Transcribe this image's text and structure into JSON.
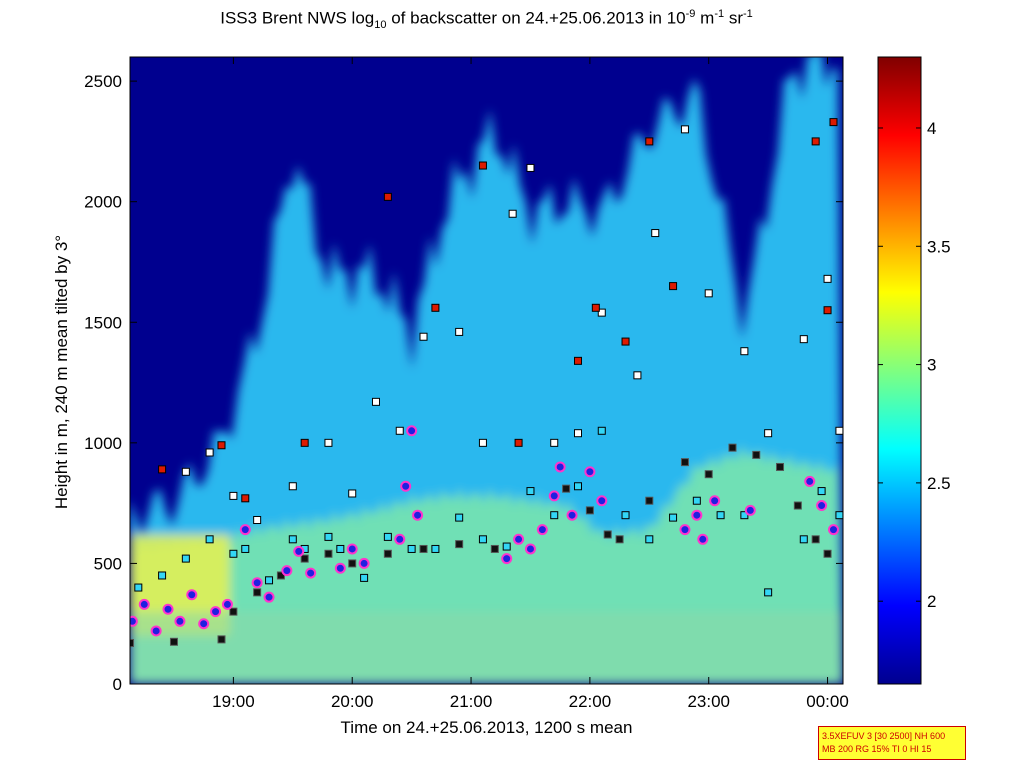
{
  "chart_data": {
    "type": "heatmap",
    "title_parts": {
      "a": "ISS3 Brent NWS log",
      "sub": "10",
      "b": " of backscatter on 24.+25.06.2013 in 10",
      "sup1": "-9",
      "c": " m",
      "sup2": "-1",
      "d": " sr",
      "sup3": "-1"
    },
    "xlabel": "Time on 24.+25.06.2013, 1200 s mean",
    "ylabel": "Height in m, 240 m mean tilted by 3°",
    "x_range_hours": [
      18.13,
      24.13
    ],
    "ylim": [
      0,
      2600
    ],
    "x_ticks": [
      {
        "value": 19,
        "label": "19:00"
      },
      {
        "value": 20,
        "label": "20:00"
      },
      {
        "value": 21,
        "label": "21:00"
      },
      {
        "value": 22,
        "label": "22:00"
      },
      {
        "value": 23,
        "label": "23:00"
      },
      {
        "value": 24,
        "label": "00:00"
      }
    ],
    "y_ticks": [
      {
        "value": 0,
        "label": "0"
      },
      {
        "value": 500,
        "label": "500"
      },
      {
        "value": 1000,
        "label": "1000"
      },
      {
        "value": 1500,
        "label": "1500"
      },
      {
        "value": 2000,
        "label": "2000"
      },
      {
        "value": 2500,
        "label": "2500"
      }
    ],
    "colorbar": {
      "range": [
        1.65,
        4.3
      ],
      "colormap": "jet",
      "ticks": [
        {
          "value": 2,
          "label": "2"
        },
        {
          "value": 2.5,
          "label": "2.5"
        },
        {
          "value": 3,
          "label": "3"
        },
        {
          "value": 3.5,
          "label": "3.5"
        },
        {
          "value": 4,
          "label": "4"
        }
      ]
    },
    "backscatter_profile": {
      "hours": [
        18.13,
        18.5,
        18.9,
        19.2,
        19.5,
        19.8,
        20.2,
        20.5,
        20.8,
        21.2,
        21.5,
        21.8,
        22.1,
        22.5,
        22.9,
        23.3,
        23.7,
        24.13
      ],
      "cloud_top_m": [
        700,
        750,
        1000,
        1450,
        2200,
        1700,
        1700,
        1450,
        2000,
        2300,
        1950,
        2000,
        1950,
        2300,
        2450,
        1500,
        2550,
        2600
      ],
      "aerosol_top_m": [
        560,
        580,
        600,
        640,
        660,
        680,
        720,
        760,
        780,
        780,
        760,
        740,
        620,
        640,
        900,
        960,
        920,
        880
      ]
    },
    "series": [
      {
        "name": "mixing-layer-height",
        "marker": "black-square",
        "hours": [
          18.13,
          18.5,
          18.9,
          19.0,
          19.2,
          19.4,
          19.6,
          19.8,
          20.0,
          20.3,
          20.6,
          20.9,
          21.2,
          21.5,
          21.8,
          22.0,
          22.15,
          22.25,
          22.5,
          22.8,
          23.0,
          23.2,
          23.4,
          23.6,
          23.75,
          23.9,
          24.0
        ],
        "heights_m": [
          170,
          175,
          185,
          300,
          380,
          450,
          520,
          540,
          500,
          540,
          560,
          580,
          560,
          560,
          810,
          720,
          620,
          600,
          760,
          920,
          870,
          980,
          950,
          900,
          740,
          600,
          540
        ]
      },
      {
        "name": "cyan-layers",
        "marker": "cyan-square",
        "hours": [
          18.2,
          18.4,
          18.6,
          18.8,
          19.0,
          19.1,
          19.3,
          19.5,
          19.6,
          19.8,
          19.9,
          20.1,
          20.3,
          20.5,
          20.7,
          20.9,
          21.1,
          21.3,
          21.5,
          21.7,
          21.9,
          22.1,
          22.3,
          22.5,
          22.7,
          22.9,
          23.1,
          23.3,
          23.5,
          23.8,
          23.95,
          24.1
        ],
        "heights_m": [
          400,
          450,
          520,
          600,
          540,
          560,
          430,
          600,
          560,
          610,
          560,
          440,
          610,
          560,
          560,
          690,
          600,
          570,
          800,
          700,
          820,
          1050,
          700,
          600,
          690,
          760,
          700,
          700,
          380,
          600,
          800,
          700
        ]
      },
      {
        "name": "white-layers",
        "marker": "white-square",
        "hours": [
          18.6,
          18.8,
          19.0,
          19.2,
          19.5,
          19.8,
          20.0,
          20.2,
          20.4,
          20.6,
          20.9,
          21.1,
          21.35,
          21.5,
          21.7,
          21.9,
          22.1,
          22.4,
          22.55,
          22.8,
          23.0,
          23.3,
          23.5,
          23.8,
          24.0,
          24.1
        ],
        "heights_m": [
          880,
          960,
          780,
          680,
          820,
          1000,
          790,
          1170,
          1050,
          1440,
          1460,
          1000,
          1950,
          2140,
          1000,
          1040,
          1540,
          1280,
          1870,
          2300,
          1620,
          1380,
          1040,
          1430,
          1680,
          1050
        ]
      },
      {
        "name": "red-layers",
        "marker": "red-square",
        "hours": [
          18.4,
          18.9,
          19.1,
          19.6,
          20.3,
          20.7,
          21.1,
          21.4,
          21.9,
          22.05,
          22.3,
          22.5,
          22.7,
          23.9,
          24.0,
          24.05
        ],
        "heights_m": [
          890,
          990,
          770,
          1000,
          2020,
          1560,
          2150,
          1000,
          1340,
          1560,
          1420,
          2250,
          1650,
          2250,
          1550,
          2330
        ]
      },
      {
        "name": "cloud-base-circles",
        "marker": "blue-circle-magenta-edge",
        "hours": [
          18.15,
          18.25,
          18.35,
          18.45,
          18.55,
          18.65,
          18.75,
          18.85,
          18.95,
          19.1,
          19.2,
          19.3,
          19.45,
          19.55,
          19.65,
          19.9,
          20.0,
          20.1,
          20.4,
          20.45,
          20.5,
          20.55,
          21.3,
          21.4,
          21.5,
          21.6,
          21.7,
          21.75,
          21.85,
          22.0,
          22.1,
          22.8,
          22.9,
          22.95,
          23.05,
          23.35,
          23.85,
          23.95,
          24.05
        ],
        "heights_m": [
          260,
          330,
          220,
          310,
          260,
          370,
          250,
          300,
          330,
          640,
          420,
          360,
          470,
          550,
          460,
          480,
          560,
          500,
          600,
          820,
          1050,
          700,
          520,
          600,
          560,
          640,
          780,
          900,
          700,
          880,
          760,
          640,
          700,
          600,
          760,
          720,
          840,
          740,
          640
        ]
      }
    ]
  },
  "info_box": {
    "line1": "3.5XEFUV 3 [30 2500] NH 600",
    "line2": "MB 200 RG 15% TI 0 HI 15"
  }
}
